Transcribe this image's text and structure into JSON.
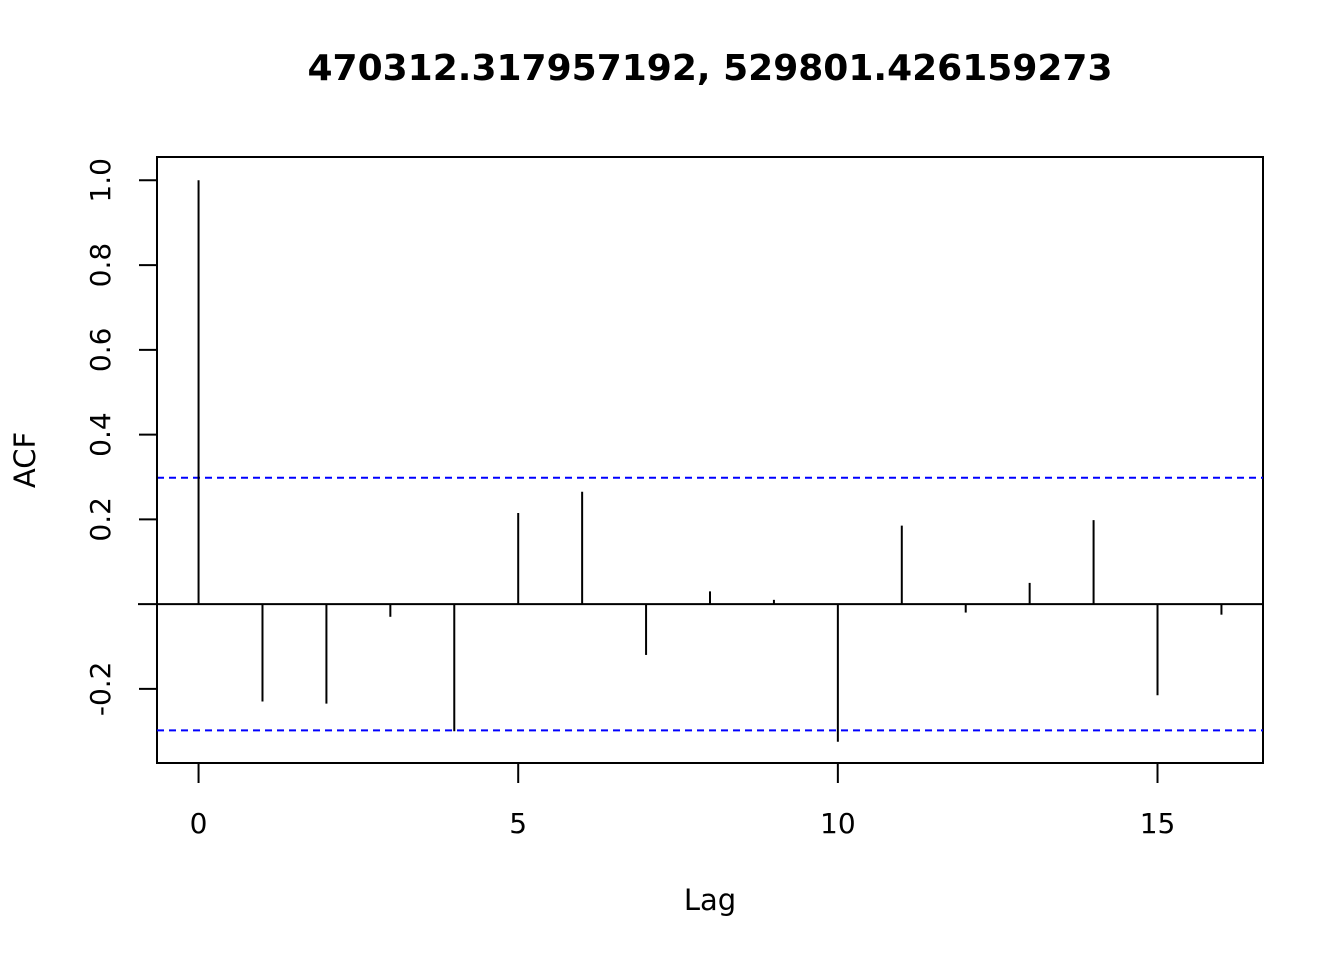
{
  "chart_data": {
    "type": "bar",
    "title": "470312.317957192, 529801.426159273",
    "xlabel": "Lag",
    "ylabel": "ACF",
    "xlim": [
      -0.65,
      16.65
    ],
    "ylim": [
      -0.375,
      1.055
    ],
    "x_ticks": [
      0,
      5,
      10,
      15
    ],
    "y_ticks": [
      -0.2,
      0.2,
      0.4,
      0.6,
      0.8,
      1.0
    ],
    "x_tick_labels": [
      "0",
      "5",
      "10",
      "15"
    ],
    "y_tick_labels": [
      "-0.2",
      "0.2",
      "0.4",
      "0.6",
      "0.8",
      "1.0"
    ],
    "lags": [
      0,
      1,
      2,
      3,
      4,
      5,
      6,
      7,
      8,
      9,
      10,
      11,
      12,
      13,
      14,
      15,
      16
    ],
    "acf": [
      1.0,
      -0.23,
      -0.235,
      -0.03,
      -0.3,
      0.215,
      0.265,
      -0.12,
      0.03,
      0.01,
      -0.325,
      0.185,
      -0.02,
      0.05,
      0.198,
      -0.215,
      -0.025
    ],
    "confidence_bound": 0.298,
    "colors": {
      "bars": "#000000",
      "confidence": "#0000ff"
    },
    "grid": false
  }
}
